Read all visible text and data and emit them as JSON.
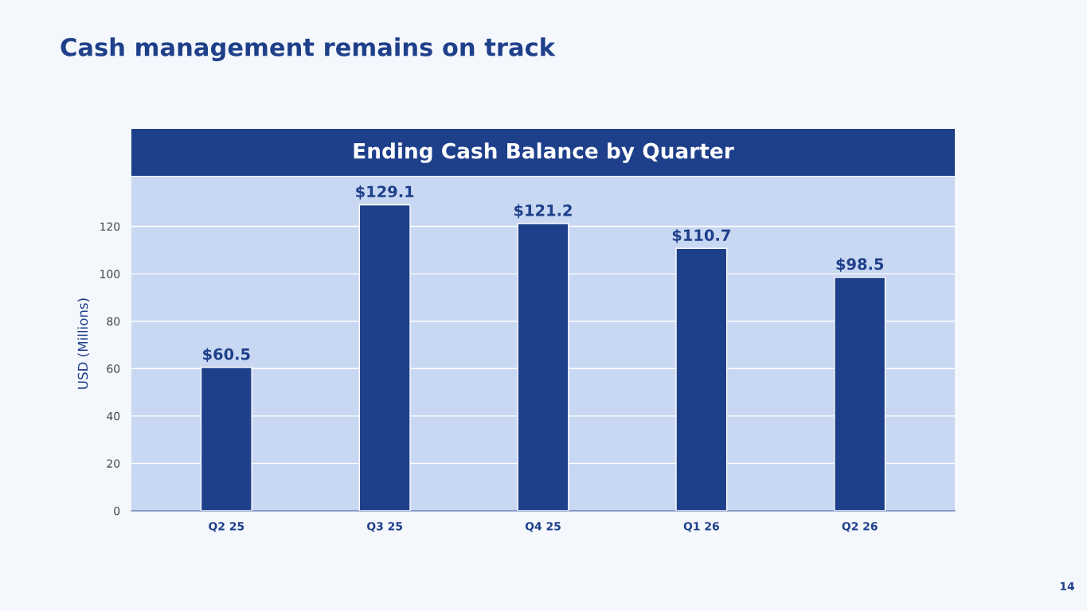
{
  "chart_data": {
    "type": "bar",
    "title": "Cash management remains on track",
    "subtitle": "Ending Cash Balance by Quarter",
    "ylabel": "USD (Millions)",
    "categories": [
      "Q2 25",
      "Q3 25",
      "Q4 25",
      "Q1 26",
      "Q2 26"
    ],
    "values": [
      60.5,
      129.1,
      121.2,
      110.7,
      98.5
    ],
    "color": "#1e3f8a",
    "value_labels": [
      "$60.5",
      "$129.1",
      "$121.2",
      "$110.7",
      "$98.5"
    ],
    "ylim": [
      0,
      141
    ],
    "yticks": [
      0,
      20,
      40,
      60,
      80,
      100,
      120
    ],
    "grid": "y",
    "annotations": [
      "14"
    ]
  }
}
